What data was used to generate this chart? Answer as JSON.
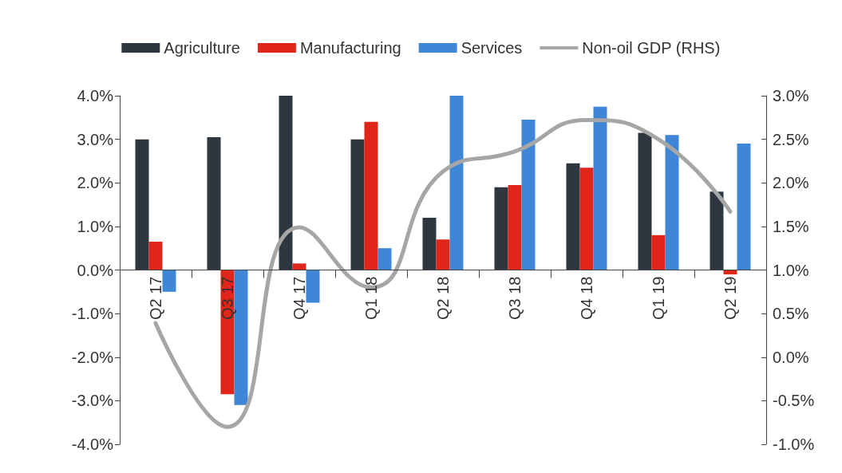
{
  "chart_data": {
    "type": "bar",
    "categories": [
      "Q2 17",
      "Q3 17",
      "Q4 17",
      "Q1 18",
      "Q2 18",
      "Q3 18",
      "Q4 18",
      "Q1 19",
      "Q2 19"
    ],
    "series": [
      {
        "name": "Agriculture",
        "color": "#2e3640",
        "values": [
          3.0,
          3.05,
          4.0,
          3.0,
          1.2,
          1.9,
          2.45,
          3.15,
          1.8
        ]
      },
      {
        "name": "Manufacturing",
        "color": "#e0251b",
        "values": [
          0.65,
          -2.85,
          0.15,
          3.4,
          0.7,
          1.95,
          2.35,
          0.8,
          -0.1
        ]
      },
      {
        "name": "Services",
        "color": "#3f86d6",
        "values": [
          -0.5,
          -3.1,
          -0.75,
          0.5,
          4.0,
          3.45,
          3.75,
          3.1,
          2.9
        ]
      },
      {
        "name": "Non-oil GDP (RHS)",
        "type": "line",
        "axis": "y2",
        "color": "#a6a6a6",
        "marker": "none",
        "line_style": "solid",
        "values": [
          0.39,
          -0.8,
          1.49,
          0.8,
          2.13,
          2.36,
          2.72,
          2.5,
          1.67
        ]
      }
    ],
    "ylim": [
      -4,
      4
    ],
    "yticks": [
      {
        "value": -4,
        "label": "-4.0%"
      },
      {
        "value": -3,
        "label": "-3.0%"
      },
      {
        "value": -2,
        "label": "-2.0%"
      },
      {
        "value": -1,
        "label": "-1.0%"
      },
      {
        "value": 0,
        "label": "0.0%"
      },
      {
        "value": 1,
        "label": "1.0%"
      },
      {
        "value": 2,
        "label": "2.0%"
      },
      {
        "value": 3,
        "label": "3.0%"
      },
      {
        "value": 4,
        "label": "4.0%"
      }
    ],
    "y2lim": [
      -1,
      3
    ],
    "y2ticks": [
      {
        "value": -1,
        "label": "-1.0%"
      },
      {
        "value": -0.5,
        "label": "-0.5%"
      },
      {
        "value": 0,
        "label": "0.0%"
      },
      {
        "value": 0.5,
        "label": "0.5%"
      },
      {
        "value": 1,
        "label": "1.0%"
      },
      {
        "value": 1.5,
        "label": "1.5%"
      },
      {
        "value": 2,
        "label": "2.0%"
      },
      {
        "value": 2.5,
        "label": "2.5%"
      },
      {
        "value": 3,
        "label": "3.0%"
      }
    ],
    "grid": false,
    "legend": "top"
  }
}
